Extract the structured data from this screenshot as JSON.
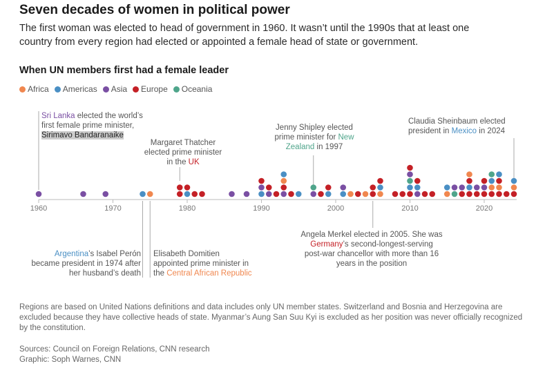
{
  "header": {
    "title": "Seven decades of women in political power",
    "subtitle": "The first woman was elected to head of government in 1960. It wasn’t until the 1990s that at least one country from every region had elected or appointed a female head of state or government."
  },
  "colors": {
    "Africa": "#f0874f",
    "Americas": "#4a8fc4",
    "Asia": "#7a4fa3",
    "Europe": "#c42026",
    "Oceania": "#4fa58b",
    "annotation_line": "#aaaaaa",
    "axis": "#bbbbbb"
  },
  "chart_data": {
    "type": "scatter",
    "title": "When UN members first had a female leader",
    "legend": [
      "Africa",
      "Americas",
      "Asia",
      "Europe",
      "Oceania"
    ],
    "legend_placement": "top-left",
    "x_axis": {
      "ticks": [
        "1960",
        "1970",
        "1980",
        "1990",
        "2000",
        "2010",
        "2020"
      ],
      "range": [
        1960,
        2024
      ]
    },
    "grid": false,
    "points": [
      {
        "year": 1960,
        "region": "Asia"
      },
      {
        "year": 1966,
        "region": "Asia"
      },
      {
        "year": 1969,
        "region": "Asia"
      },
      {
        "year": 1974,
        "region": "Americas"
      },
      {
        "year": 1975,
        "region": "Africa"
      },
      {
        "year": 1979,
        "region": "Europe"
      },
      {
        "year": 1979,
        "region": "Europe"
      },
      {
        "year": 1980,
        "region": "Americas"
      },
      {
        "year": 1980,
        "region": "Europe"
      },
      {
        "year": 1981,
        "region": "Europe"
      },
      {
        "year": 1982,
        "region": "Europe"
      },
      {
        "year": 1986,
        "region": "Asia"
      },
      {
        "year": 1988,
        "region": "Asia"
      },
      {
        "year": 1990,
        "region": "Americas"
      },
      {
        "year": 1990,
        "region": "Asia"
      },
      {
        "year": 1990,
        "region": "Europe"
      },
      {
        "year": 1991,
        "region": "Asia"
      },
      {
        "year": 1991,
        "region": "Europe"
      },
      {
        "year": 1992,
        "region": "Europe"
      },
      {
        "year": 1993,
        "region": "Asia"
      },
      {
        "year": 1993,
        "region": "Europe"
      },
      {
        "year": 1993,
        "region": "Africa"
      },
      {
        "year": 1993,
        "region": "Americas"
      },
      {
        "year": 1994,
        "region": "Europe"
      },
      {
        "year": 1995,
        "region": "Americas"
      },
      {
        "year": 1997,
        "region": "Asia"
      },
      {
        "year": 1997,
        "region": "Oceania"
      },
      {
        "year": 1998,
        "region": "Europe"
      },
      {
        "year": 1999,
        "region": "Americas"
      },
      {
        "year": 1999,
        "region": "Europe"
      },
      {
        "year": 2001,
        "region": "Americas"
      },
      {
        "year": 2001,
        "region": "Asia"
      },
      {
        "year": 2002,
        "region": "Africa"
      },
      {
        "year": 2003,
        "region": "Europe"
      },
      {
        "year": 2004,
        "region": "Africa"
      },
      {
        "year": 2005,
        "region": "Europe"
      },
      {
        "year": 2005,
        "region": "Europe"
      },
      {
        "year": 2006,
        "region": "Africa"
      },
      {
        "year": 2006,
        "region": "Americas"
      },
      {
        "year": 2006,
        "region": "Europe"
      },
      {
        "year": 2008,
        "region": "Europe"
      },
      {
        "year": 2009,
        "region": "Europe"
      },
      {
        "year": 2010,
        "region": "Europe"
      },
      {
        "year": 2010,
        "region": "Americas"
      },
      {
        "year": 2010,
        "region": "Oceania"
      },
      {
        "year": 2010,
        "region": "Asia"
      },
      {
        "year": 2010,
        "region": "Europe"
      },
      {
        "year": 2011,
        "region": "Asia"
      },
      {
        "year": 2011,
        "region": "Americas"
      },
      {
        "year": 2011,
        "region": "Europe"
      },
      {
        "year": 2012,
        "region": "Europe"
      },
      {
        "year": 2013,
        "region": "Europe"
      },
      {
        "year": 2015,
        "region": "Africa"
      },
      {
        "year": 2015,
        "region": "Americas"
      },
      {
        "year": 2016,
        "region": "Oceania"
      },
      {
        "year": 2016,
        "region": "Asia"
      },
      {
        "year": 2017,
        "region": "Europe"
      },
      {
        "year": 2017,
        "region": "Asia"
      },
      {
        "year": 2018,
        "region": "Europe"
      },
      {
        "year": 2018,
        "region": "Americas"
      },
      {
        "year": 2018,
        "region": "Europe"
      },
      {
        "year": 2018,
        "region": "Africa"
      },
      {
        "year": 2019,
        "region": "Europe"
      },
      {
        "year": 2019,
        "region": "Asia"
      },
      {
        "year": 2020,
        "region": "Europe"
      },
      {
        "year": 2020,
        "region": "Asia"
      },
      {
        "year": 2020,
        "region": "Europe"
      },
      {
        "year": 2021,
        "region": "Europe"
      },
      {
        "year": 2021,
        "region": "Africa"
      },
      {
        "year": 2021,
        "region": "Americas"
      },
      {
        "year": 2021,
        "region": "Oceania"
      },
      {
        "year": 2022,
        "region": "Europe"
      },
      {
        "year": 2022,
        "region": "Africa"
      },
      {
        "year": 2022,
        "region": "Europe"
      },
      {
        "year": 2022,
        "region": "Americas"
      },
      {
        "year": 2023,
        "region": "Europe"
      },
      {
        "year": 2024,
        "region": "Europe"
      },
      {
        "year": 2024,
        "region": "Africa"
      },
      {
        "year": 2024,
        "region": "Americas"
      }
    ]
  },
  "annotations": {
    "sri_lanka": {
      "country": "Sri Lanka",
      "rest_line1": " elected the world’s",
      "line2": "first female prime minister,",
      "name": "Sirimavo Bandaranaike"
    },
    "thatcher": {
      "line1": "Margaret Thatcher",
      "line2": "elected prime minister",
      "prefix3": "in the ",
      "country": "UK"
    },
    "shipley": {
      "line1": "Jenny Shipley elected",
      "line2": "prime minister for ",
      "country_a": "New",
      "country_b": "Zealand",
      "suffix": " in 1997"
    },
    "sheinbaum": {
      "line1": "Claudia Sheinbaum elected",
      "prefix2": "president in ",
      "country": "Mexico",
      "suffix2": " in 2024"
    },
    "peron": {
      "country": "Argentina",
      "rest_line1": "’s Isabel Perón",
      "line2": "became president in 1974 after",
      "line3": "her husband’s death"
    },
    "domitien": {
      "line1": "Elisabeth Domitien",
      "line2": "appointed prime minister in",
      "prefix3": "the ",
      "country": "Central African Republic"
    },
    "merkel": {
      "line1": "Angela Merkel elected in 2005. She was",
      "country": "Germany",
      "rest_line2": "’s second-longest-serving",
      "line3": "post-war chancellor with more than 16",
      "line4": "years in the position"
    }
  },
  "footer": {
    "note": "Regions are based on United Nations definitions and data includes only UN member states. Switzerland and Bosnia and Herzegovina are excluded because they have collective heads of state. Myanmar’s Aung San Suu Kyi is excluded as her position was never officially recognized by the constitution.",
    "sources": "Sources: Council on Foreign Relations, CNN research",
    "graphic": "Graphic: Soph Warnes, CNN"
  }
}
